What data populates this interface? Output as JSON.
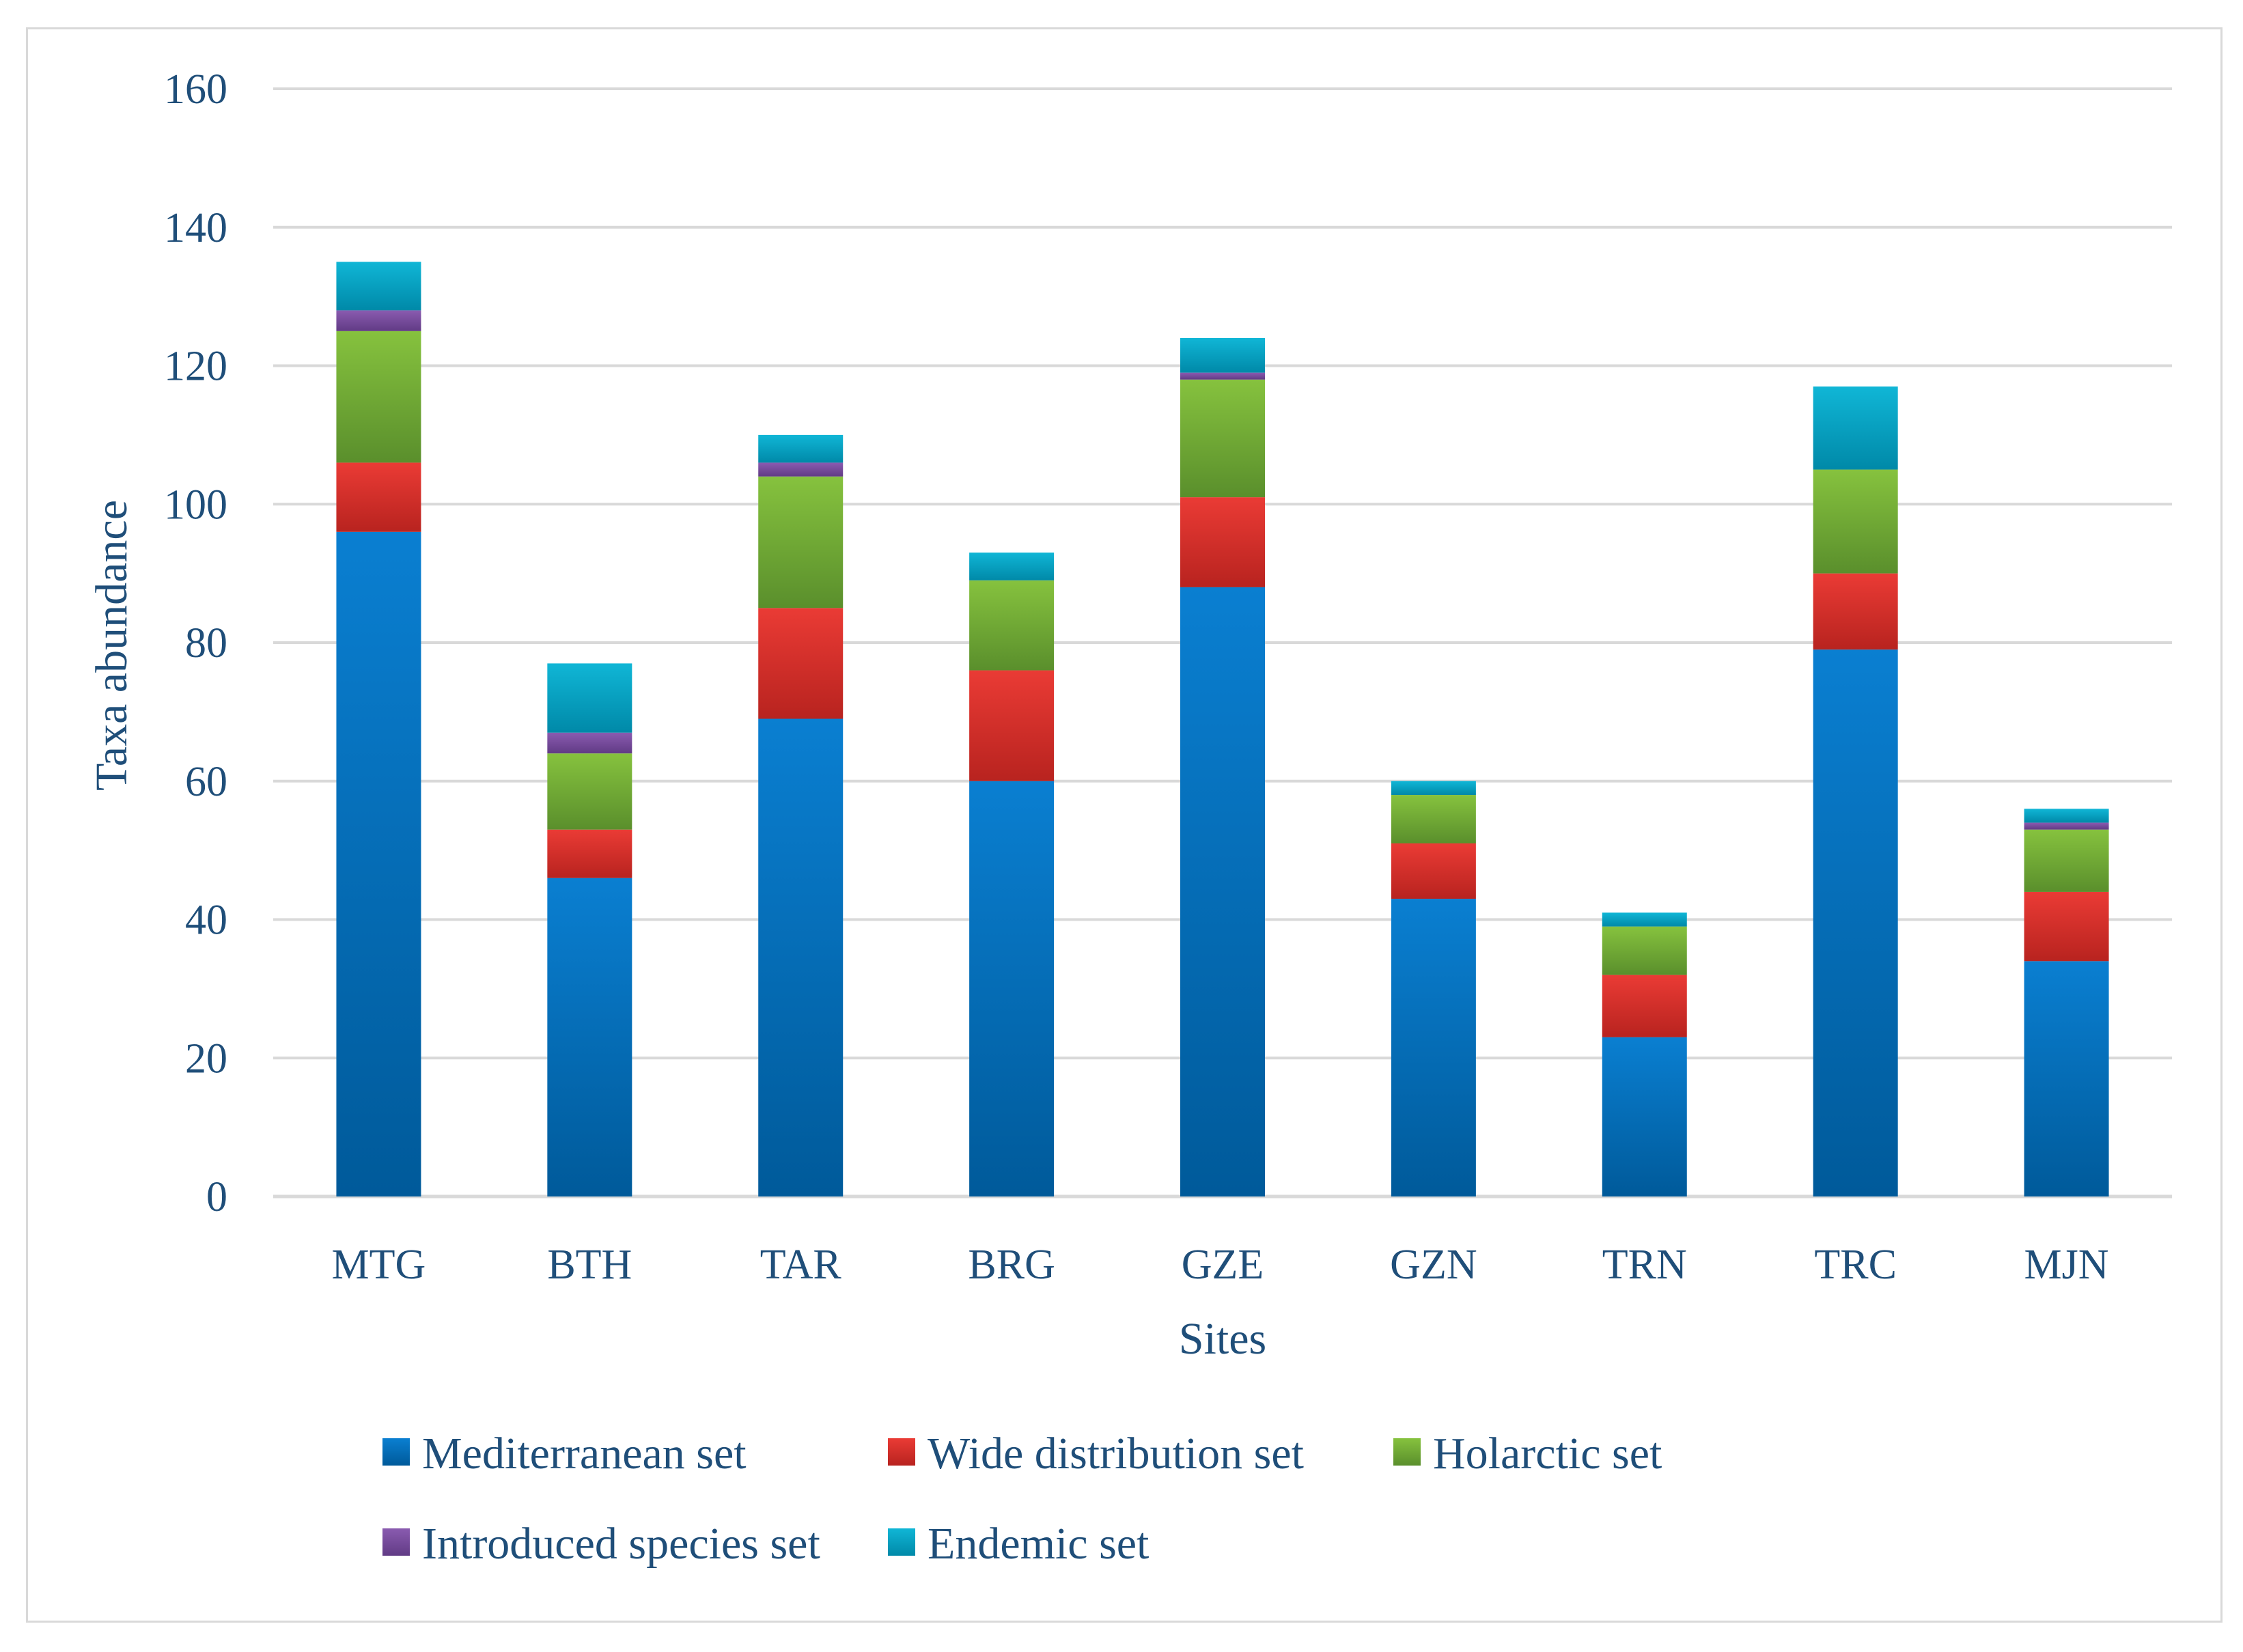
{
  "chart_data": {
    "type": "bar",
    "stacked": true,
    "title": "",
    "xlabel": "Sites",
    "ylabel": "Taxa abundance",
    "ylim": [
      0,
      160
    ],
    "yticks": [
      0,
      20,
      40,
      60,
      80,
      100,
      120,
      140,
      160
    ],
    "grid": true,
    "legend_position": "bottom",
    "categories": [
      "MTG",
      "BTH",
      "TAR",
      "BRG",
      "GZE",
      "GZN",
      "TRN",
      "TRC",
      "MJN"
    ],
    "series": [
      {
        "name": "Mediterranean set",
        "color": "#0070c0",
        "dark": "#005a9a",
        "light": "#0a7fd1",
        "values": [
          96,
          46,
          69,
          60,
          88,
          43,
          23,
          79,
          34
        ]
      },
      {
        "name": "Wide distribution set",
        "color": "#e03c31",
        "dark": "#b8231f",
        "light": "#ea3b35",
        "values": [
          10,
          7,
          16,
          16,
          13,
          8,
          9,
          11,
          10
        ]
      },
      {
        "name": "Holarctic set",
        "color": "#70ad47",
        "dark": "#5a8f2c",
        "light": "#86c23e",
        "values": [
          19,
          11,
          19,
          13,
          17,
          7,
          7,
          15,
          9
        ]
      },
      {
        "name": "Introduced species set",
        "color": "#7b4fa0",
        "dark": "#613b85",
        "light": "#8a5bb0",
        "values": [
          3,
          3,
          2,
          0,
          1,
          0,
          0,
          0,
          1
        ]
      },
      {
        "name": "Endemic set",
        "color": "#00a6c8",
        "dark": "#0089a8",
        "light": "#10b6d6",
        "values": [
          7,
          10,
          4,
          4,
          5,
          2,
          2,
          12,
          2
        ]
      }
    ]
  }
}
